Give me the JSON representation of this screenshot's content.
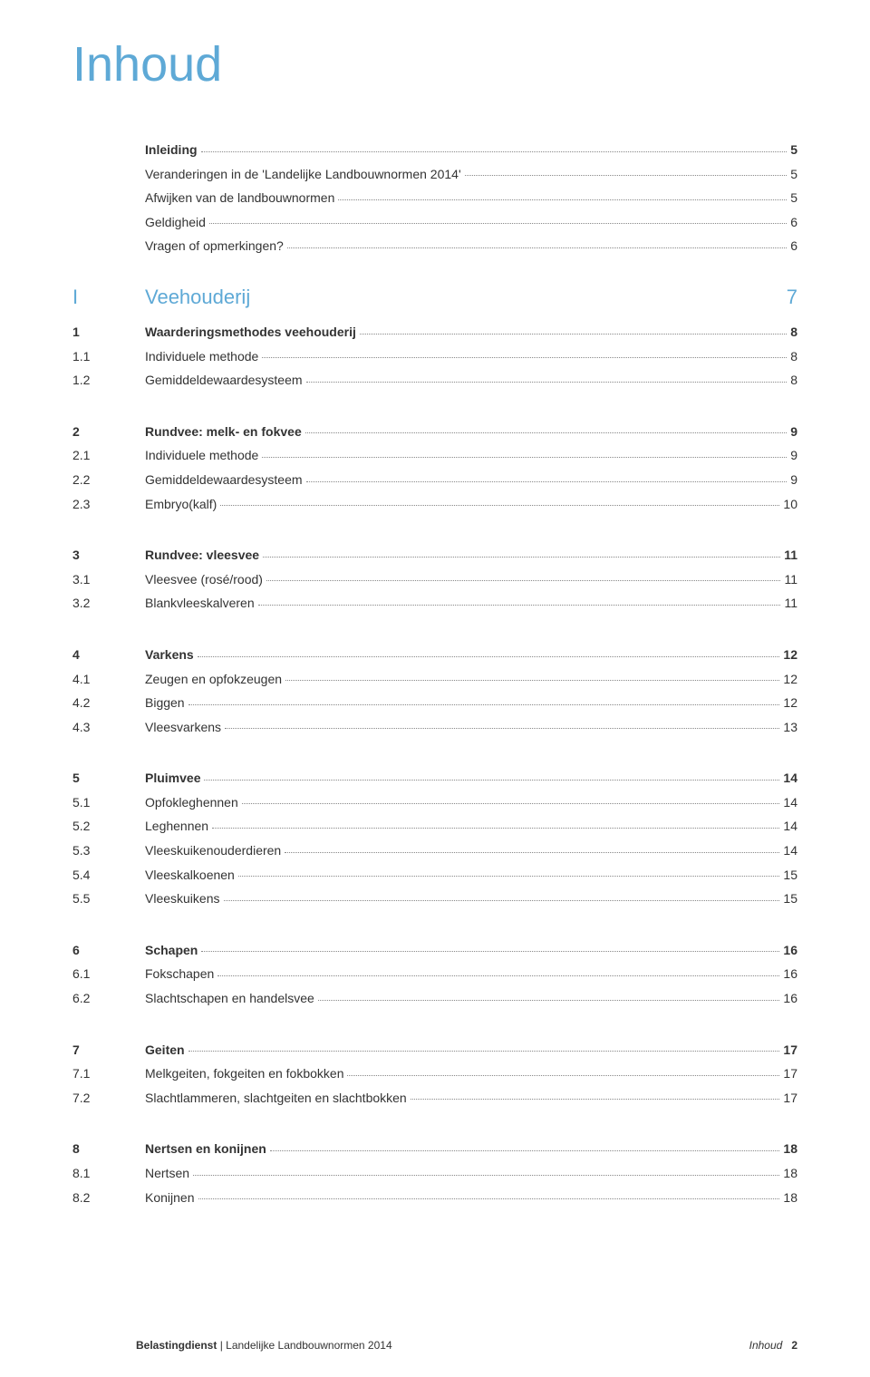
{
  "colors": {
    "accent": "#5ea9d6",
    "text": "#333333",
    "dots": "#888888",
    "background": "#ffffff"
  },
  "title": "Inhoud",
  "intro_block": [
    {
      "num": "",
      "label": "Inleiding",
      "page": "5",
      "bold": true
    },
    {
      "num": "",
      "label": "Veranderingen in de 'Landelijke Landbouwnormen 2014'",
      "page": "5",
      "bold": false
    },
    {
      "num": "",
      "label": "Afwijken van de landbouwnormen",
      "page": "5",
      "bold": false
    },
    {
      "num": "",
      "label": "Geldigheid",
      "page": "6",
      "bold": false
    },
    {
      "num": "",
      "label": "Vragen of opmerkingen?",
      "page": "6",
      "bold": false
    }
  ],
  "part": {
    "num": "I",
    "label": "Veehouderij",
    "page": "7"
  },
  "sections": [
    [
      {
        "num": "1",
        "label": "Waarderingsmethodes veehouderij",
        "page": "8",
        "bold": true
      },
      {
        "num": "1.1",
        "label": "Individuele methode",
        "page": "8",
        "bold": false
      },
      {
        "num": "1.2",
        "label": "Gemiddeldewaardesysteem",
        "page": "8",
        "bold": false
      }
    ],
    [
      {
        "num": "2",
        "label": "Rundvee: melk- en fokvee",
        "page": "9",
        "bold": true
      },
      {
        "num": "2.1",
        "label": "Individuele methode",
        "page": "9",
        "bold": false
      },
      {
        "num": "2.2",
        "label": "Gemiddeldewaardesysteem",
        "page": "9",
        "bold": false
      },
      {
        "num": "2.3",
        "label": "Embryo(kalf)",
        "page": "10",
        "bold": false
      }
    ],
    [
      {
        "num": "3",
        "label": "Rundvee: vleesvee",
        "page": "11",
        "bold": true
      },
      {
        "num": "3.1",
        "label": "Vleesvee (rosé/rood)",
        "page": "11",
        "bold": false
      },
      {
        "num": "3.2",
        "label": "Blankvleeskalveren",
        "page": "11",
        "bold": false
      }
    ],
    [
      {
        "num": "4",
        "label": "Varkens",
        "page": "12",
        "bold": true
      },
      {
        "num": "4.1",
        "label": "Zeugen en opfokzeugen",
        "page": "12",
        "bold": false
      },
      {
        "num": "4.2",
        "label": "Biggen",
        "page": "12",
        "bold": false
      },
      {
        "num": "4.3",
        "label": "Vleesvarkens",
        "page": "13",
        "bold": false
      }
    ],
    [
      {
        "num": "5",
        "label": "Pluimvee",
        "page": "14",
        "bold": true
      },
      {
        "num": "5.1",
        "label": "Opfokleghennen",
        "page": "14",
        "bold": false
      },
      {
        "num": "5.2",
        "label": "Leghennen",
        "page": "14",
        "bold": false
      },
      {
        "num": "5.3",
        "label": "Vleeskuikenouderdieren",
        "page": "14",
        "bold": false
      },
      {
        "num": "5.4",
        "label": "Vleeskalkoenen",
        "page": "15",
        "bold": false
      },
      {
        "num": "5.5",
        "label": "Vleeskuikens",
        "page": "15",
        "bold": false
      }
    ],
    [
      {
        "num": "6",
        "label": "Schapen",
        "page": "16",
        "bold": true
      },
      {
        "num": "6.1",
        "label": "Fokschapen",
        "page": "16",
        "bold": false
      },
      {
        "num": "6.2",
        "label": "Slachtschapen en handelsvee",
        "page": "16",
        "bold": false
      }
    ],
    [
      {
        "num": "7",
        "label": "Geiten",
        "page": "17",
        "bold": true
      },
      {
        "num": "7.1",
        "label": "Melkgeiten, fokgeiten en fokbokken",
        "page": "17",
        "bold": false
      },
      {
        "num": "7.2",
        "label": "Slachtlammeren, slachtgeiten en slachtbokken",
        "page": "17",
        "bold": false
      }
    ],
    [
      {
        "num": "8",
        "label": "Nertsen en konijnen",
        "page": "18",
        "bold": true
      },
      {
        "num": "8.1",
        "label": "Nertsen",
        "page": "18",
        "bold": false
      },
      {
        "num": "8.2",
        "label": "Konijnen",
        "page": "18",
        "bold": false
      }
    ]
  ],
  "footer": {
    "source_bold": "Belastingdienst",
    "source_sep": " | ",
    "source_rest": "Landelijke Landbouwnormen 2014",
    "section_name": "Inhoud",
    "page_num": "2"
  }
}
